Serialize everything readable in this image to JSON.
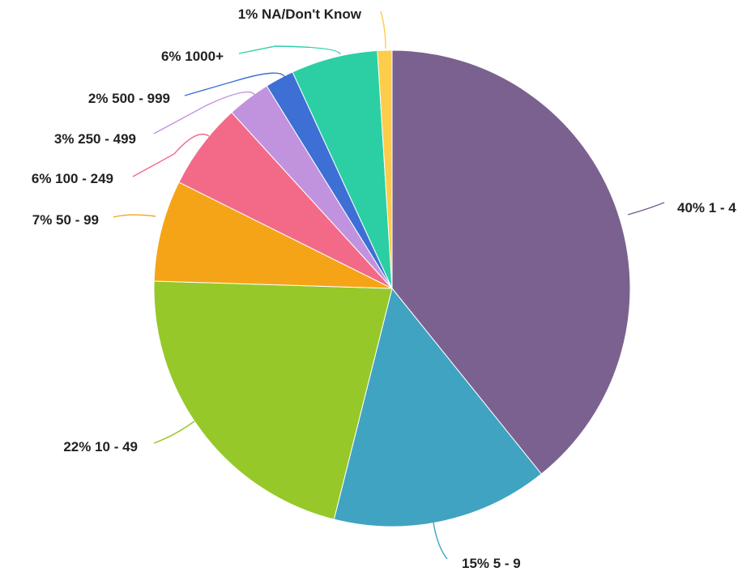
{
  "chart_data": {
    "type": "pie",
    "start_angle_deg": 0,
    "direction": "clockwise",
    "slices": [
      {
        "label": "40% 1 - 4",
        "category": "1 - 4",
        "value": 40,
        "color": "#7B6190"
      },
      {
        "label": "15% 5 - 9",
        "category": "5 - 9",
        "value": 15,
        "color": "#40A3C1"
      },
      {
        "label": "22% 10 - 49",
        "category": "10 - 49",
        "value": 22,
        "color": "#96C829"
      },
      {
        "label": "7% 50 - 99",
        "category": "50 - 99",
        "value": 7,
        "color": "#F5A418"
      },
      {
        "label": "6% 100 - 249",
        "category": "100 - 249",
        "value": 6,
        "color": "#F26A87"
      },
      {
        "label": "3% 250 - 499",
        "category": "250 - 499",
        "value": 3,
        "color": "#C193DE"
      },
      {
        "label": "2% 500 - 999",
        "category": "500 - 999",
        "value": 2,
        "color": "#3D6FD5"
      },
      {
        "label": "6% 1000+",
        "category": "1000+",
        "value": 6,
        "color": "#2BCFA3"
      },
      {
        "label": "1% NA/Don't Know",
        "category": "NA/Don't Know",
        "value": 1,
        "color": "#FDCC4B"
      }
    ]
  }
}
